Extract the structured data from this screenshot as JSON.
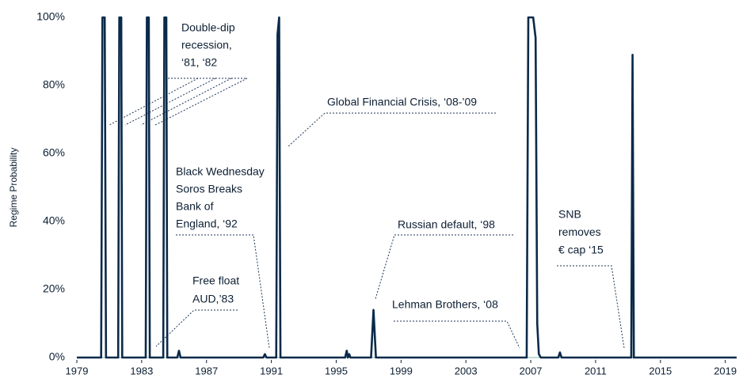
{
  "chart_data": {
    "type": "line",
    "ylabel": "Regime Probability",
    "x": [
      1979,
      1980.5,
      1980.58,
      1980.72,
      1980.8,
      1981.55,
      1981.62,
      1981.74,
      1981.8,
      1983.25,
      1983.32,
      1983.44,
      1983.5,
      1984.33,
      1984.4,
      1984.52,
      1984.58,
      1985.2,
      1985.3,
      1985.4,
      1990.5,
      1990.6,
      1990.7,
      1991.3,
      1991.38,
      1991.48,
      1991.56,
      1995.55,
      1995.65,
      1995.72,
      1995.8,
      1995.88,
      1997.15,
      1997.3,
      1997.45,
      2006.75,
      2006.85,
      2007.15,
      2007.3,
      2007.4,
      2007.5,
      2007.62,
      2008.7,
      2008.8,
      2008.9,
      2013.2,
      2013.28,
      2013.36,
      2019.7
    ],
    "values": [
      0,
      0,
      100,
      100,
      0,
      0,
      100,
      100,
      0,
      0,
      100,
      100,
      0,
      0,
      100,
      100,
      0,
      0,
      2,
      0,
      0,
      1,
      0,
      0,
      95,
      100,
      0,
      0,
      2,
      0,
      1,
      0,
      0,
      14,
      0,
      0,
      100,
      100,
      94,
      10,
      1,
      0,
      0,
      1.5,
      0,
      0,
      89,
      0,
      0
    ],
    "color": "#0b2a4a",
    "xlim": [
      1979,
      2019.7
    ],
    "xticks": [
      1979,
      1983,
      1987,
      1991,
      1995,
      1999,
      2003,
      2007,
      2011,
      2015,
      2019
    ],
    "ylim": [
      0,
      100
    ],
    "yticks": [
      {
        "value": 0,
        "label": "0%"
      },
      {
        "value": 20,
        "label": "20%"
      },
      {
        "value": 40,
        "label": "40%"
      },
      {
        "value": 60,
        "label": "60%"
      },
      {
        "value": 80,
        "label": "80%"
      },
      {
        "value": 100,
        "label": "100%"
      }
    ],
    "annotations": [
      [
        "Double-dip",
        "recession,",
        "‘81, ‘82"
      ],
      [
        "Global Financial Crisis, ‘08-’09"
      ],
      [
        "Black Wednesday",
        "Soros Breaks",
        "Bank of",
        "England, ‘92"
      ],
      [
        "Russian default, ‘98"
      ],
      [
        "SNB",
        "removes",
        "€ cap ‘15"
      ],
      [
        "Free float",
        "AUD,’83"
      ],
      [
        "Lehman Brothers, ‘08"
      ]
    ]
  }
}
